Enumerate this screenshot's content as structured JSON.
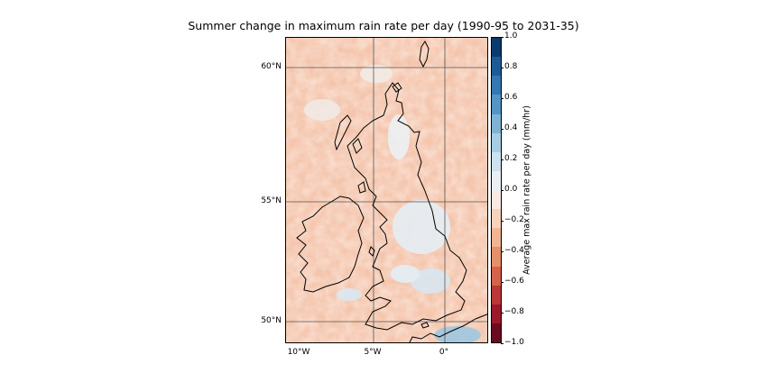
{
  "title": "Summer change in maximum rain rate per day (1990-95 to 2031-35)",
  "map": {
    "lat_ticks": [
      "60°N",
      "55°N",
      "50°N"
    ],
    "lon_ticks": [
      "10°W",
      "5°W",
      "0°"
    ],
    "extent": {
      "lon_min": -11,
      "lon_max": 3,
      "lat_min": 49.5,
      "lat_max": 61
    }
  },
  "colorbar": {
    "label": "Average max rain rate per day (mm/hr)",
    "ticks": [
      "1.0",
      "0.8",
      "0.6",
      "0.4",
      "0.2",
      "0.0",
      "−0.2",
      "−0.4",
      "−0.6",
      "−0.8",
      "−1.0"
    ],
    "range": [
      -1.0,
      1.0
    ],
    "colors_top_to_bottom": [
      "#0b3a6e",
      "#1d5a98",
      "#3478b3",
      "#5495c5",
      "#7fb2d5",
      "#a8cde3",
      "#cde2ef",
      "#e8f0f6",
      "#f9ebe3",
      "#f6d2bd",
      "#f1b495",
      "#e58f6c",
      "#d4634a",
      "#bb3838",
      "#9a1a2b",
      "#6d0a1f"
    ]
  }
}
